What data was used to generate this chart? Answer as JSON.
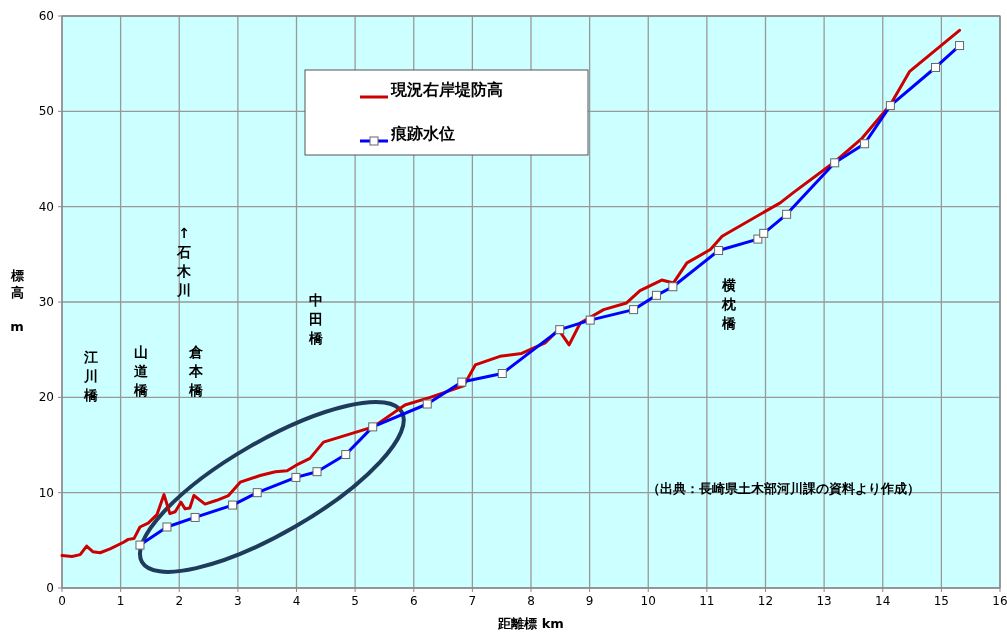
{
  "chart_data": {
    "type": "line",
    "xlabel": "距離標 km",
    "ylabel": "標高 m",
    "xlim": [
      0,
      16
    ],
    "xticks": [
      0,
      1,
      2,
      3,
      4,
      5,
      6,
      7,
      8,
      9,
      10,
      11,
      12,
      13,
      14,
      15,
      16
    ],
    "ylim": [
      0,
      60
    ],
    "yticks": [
      0,
      10,
      20,
      30,
      40,
      50,
      60
    ],
    "grid": true,
    "legend": "top",
    "series": [
      {
        "name": "現況右岸堤防高",
        "color": "#cc0000",
        "marker": "none",
        "x": [
          0,
          0.17,
          0.31,
          0.42,
          0.53,
          0.65,
          0.82,
          1.05,
          1.13,
          1.23,
          1.33,
          1.47,
          1.62,
          1.74,
          1.84,
          1.93,
          2.03,
          2.1,
          2.18,
          2.25,
          2.44,
          2.64,
          2.84,
          3.04,
          3.38,
          3.64,
          3.84,
          4.03,
          4.23,
          4.46,
          5.31,
          5.85,
          6.28,
          6.85,
          7.05,
          7.47,
          7.84,
          8.24,
          8.47,
          8.65,
          8.84,
          9.24,
          9.63,
          9.86,
          10.23,
          10.43,
          10.66,
          11.06,
          11.26,
          12.25,
          12.48,
          13.16,
          13.65,
          14.13,
          14.46,
          15.31
        ],
        "values": [
          3.4,
          3.3,
          3.5,
          4.4,
          3.8,
          3.7,
          4.1,
          4.8,
          5.1,
          5.2,
          6.4,
          6.8,
          7.7,
          9.8,
          7.8,
          8.0,
          9.0,
          8.3,
          8.4,
          9.7,
          8.8,
          9.2,
          9.7,
          11.1,
          11.8,
          12.2,
          12.3,
          13.0,
          13.6,
          15.3,
          16.9,
          19.2,
          20.0,
          21.2,
          23.4,
          24.3,
          24.6,
          25.7,
          27.1,
          25.5,
          27.8,
          29.2,
          29.9,
          31.2,
          32.3,
          32.0,
          34.1,
          35.5,
          36.9,
          40.4,
          41.5,
          44.6,
          47.2,
          50.7,
          54.2,
          58.5
        ]
      },
      {
        "name": "痕跡水位",
        "color": "#0000ff",
        "marker": "square",
        "x": [
          1.33,
          1.79,
          2.27,
          2.91,
          3.33,
          3.99,
          4.35,
          4.84,
          5.3,
          6.23,
          6.82,
          7.51,
          8.49,
          9.01,
          9.75,
          10.14,
          10.42,
          11.2,
          11.87,
          11.97,
          12.36,
          13.18,
          13.69,
          14.13,
          14.9,
          15.31
        ],
        "values": [
          4.5,
          6.4,
          7.4,
          8.7,
          10.0,
          11.6,
          12.2,
          14.0,
          16.9,
          19.3,
          21.6,
          22.5,
          27.1,
          28.1,
          29.2,
          30.7,
          31.6,
          35.4,
          36.6,
          37.2,
          39.2,
          44.6,
          46.6,
          50.6,
          54.6,
          56.9
        ]
      }
    ],
    "annotations": [
      "江川橋",
      "山道橋",
      "↑石木川",
      "倉本橋",
      "中田橋",
      "横枕橋",
      "（出典：長崎県土木部河川課の資料より作成）"
    ]
  }
}
